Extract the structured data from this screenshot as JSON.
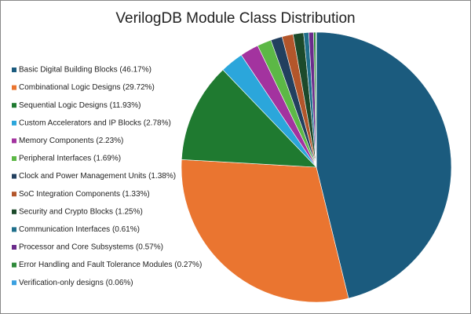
{
  "chart_data": {
    "type": "pie",
    "title": "VerilogDB Module Class Distribution",
    "categories": [
      "Basic Digital Building Blocks (46.17%)",
      "Combinational Logic Designs (29.72%)",
      "Sequential Logic Designs (11.93%)",
      "Custom Accelerators and IP Blocks (2.78%)",
      "Memory Components (2.23%)",
      "Peripheral Interfaces (1.69%)",
      "Clock and Power Management Units (1.38%)",
      "SoC Integration Components (1.33%)",
      "Security and Crypto Blocks (1.25%)",
      "Communication Interfaces (0.61%)",
      "Processor and Core Subsystems (0.57%)",
      "Error Handling and Fault Tolerance Modules (0.27%)",
      "Verification-only designs (0.06%)"
    ],
    "values": [
      46.17,
      29.72,
      11.93,
      2.78,
      2.23,
      1.69,
      1.38,
      1.33,
      1.25,
      0.61,
      0.57,
      0.27,
      0.06
    ],
    "colors": [
      "#1b5b7e",
      "#ea7530",
      "#1f7a30",
      "#2ba6db",
      "#a3339f",
      "#5cb846",
      "#22405f",
      "#b3562b",
      "#1c4a2b",
      "#1f6f8b",
      "#6b2b8b",
      "#2f8a3b",
      "#3aa0e0"
    ],
    "legend": "left"
  }
}
